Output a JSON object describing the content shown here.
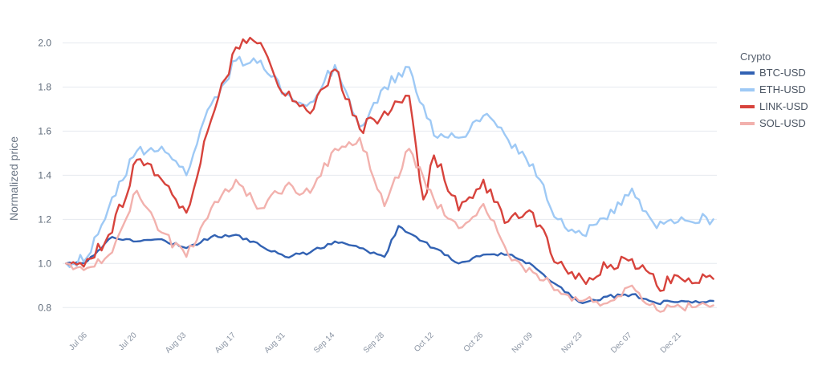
{
  "chart_data": {
    "type": "line",
    "ylabel": "Normalized price",
    "ylim": [
      0.75,
      2.02
    ],
    "yticks": [
      0.8,
      1.0,
      1.2,
      1.4,
      1.6,
      1.8,
      2.0
    ],
    "ytick_labels": [
      "0.8",
      "1.0",
      "1.2",
      "1.4",
      "1.6",
      "1.8",
      "2.0"
    ],
    "xlim": [
      "2023-06-29",
      "2023-12-31"
    ],
    "xticks": [
      "2023-07-06",
      "2023-07-20",
      "2023-08-03",
      "2023-08-17",
      "2023-08-31",
      "2023-09-14",
      "2023-09-28",
      "2023-10-12",
      "2023-10-26",
      "2023-11-09",
      "2023-11-23",
      "2023-12-07",
      "2023-12-21"
    ],
    "xtick_labels": [
      "Jul 06",
      "Jul 20",
      "Aug 03",
      "Aug 17",
      "Aug 31",
      "Sep 14",
      "Sep 28",
      "Oct 12",
      "Oct 26",
      "Nov 09",
      "Nov 23",
      "Dec 07",
      "Dec 21"
    ],
    "grid": true,
    "legend_title": "Crypto",
    "legend_position": "right",
    "series": [
      {
        "name": "BTC-USD",
        "color": "#3262b3",
        "x": [
          "2023-06-30",
          "2023-07-06",
          "2023-07-13",
          "2023-07-20",
          "2023-07-27",
          "2023-08-03",
          "2023-08-10",
          "2023-08-17",
          "2023-08-24",
          "2023-08-31",
          "2023-09-07",
          "2023-09-14",
          "2023-09-21",
          "2023-09-28",
          "2023-10-02",
          "2023-10-12",
          "2023-10-19",
          "2023-10-26",
          "2023-11-02",
          "2023-11-09",
          "2023-11-16",
          "2023-11-23",
          "2023-11-30",
          "2023-12-07",
          "2023-12-14",
          "2023-12-21",
          "2023-12-30"
        ],
        "values": [
          1.0,
          1.01,
          1.12,
          1.1,
          1.11,
          1.07,
          1.12,
          1.13,
          1.08,
          1.03,
          1.05,
          1.1,
          1.07,
          1.03,
          1.17,
          1.07,
          1.0,
          1.04,
          1.04,
          0.99,
          0.9,
          0.82,
          0.85,
          0.86,
          0.82,
          0.83,
          0.83
        ]
      },
      {
        "name": "ETH-USD",
        "color": "#9ec9f5",
        "x": [
          "2023-06-30",
          "2023-07-06",
          "2023-07-13",
          "2023-07-20",
          "2023-07-27",
          "2023-08-03",
          "2023-08-10",
          "2023-08-17",
          "2023-08-24",
          "2023-08-31",
          "2023-09-07",
          "2023-09-14",
          "2023-09-21",
          "2023-09-28",
          "2023-10-05",
          "2023-10-12",
          "2023-10-19",
          "2023-10-26",
          "2023-11-02",
          "2023-11-09",
          "2023-11-16",
          "2023-11-23",
          "2023-11-30",
          "2023-12-07",
          "2023-12-14",
          "2023-12-21",
          "2023-12-30"
        ],
        "values": [
          1.0,
          1.03,
          1.3,
          1.51,
          1.53,
          1.4,
          1.72,
          1.92,
          1.92,
          1.77,
          1.73,
          1.9,
          1.62,
          1.8,
          1.89,
          1.58,
          1.57,
          1.67,
          1.56,
          1.45,
          1.2,
          1.13,
          1.2,
          1.34,
          1.16,
          1.21,
          1.2
        ]
      },
      {
        "name": "LINK-USD",
        "color": "#d7433c",
        "x": [
          "2023-06-30",
          "2023-07-06",
          "2023-07-13",
          "2023-07-20",
          "2023-07-27",
          "2023-08-03",
          "2023-08-10",
          "2023-08-17",
          "2023-08-24",
          "2023-08-31",
          "2023-09-07",
          "2023-09-14",
          "2023-09-21",
          "2023-09-28",
          "2023-10-05",
          "2023-10-09",
          "2023-10-12",
          "2023-10-19",
          "2023-10-26",
          "2023-11-02",
          "2023-11-09",
          "2023-11-16",
          "2023-11-23",
          "2023-11-30",
          "2023-12-07",
          "2023-12-14",
          "2023-12-21",
          "2023-12-30"
        ],
        "values": [
          1.0,
          1.02,
          1.14,
          1.47,
          1.38,
          1.23,
          1.65,
          1.98,
          2.0,
          1.76,
          1.68,
          1.88,
          1.61,
          1.69,
          1.76,
          1.29,
          1.49,
          1.24,
          1.38,
          1.19,
          1.23,
          1.0,
          0.93,
          0.98,
          1.02,
          0.9,
          0.93,
          0.93
        ]
      },
      {
        "name": "SOL-USD",
        "color": "#f2b1ad",
        "x": [
          "2023-06-30",
          "2023-07-06",
          "2023-07-13",
          "2023-07-20",
          "2023-07-27",
          "2023-08-03",
          "2023-08-10",
          "2023-08-17",
          "2023-08-24",
          "2023-08-31",
          "2023-09-07",
          "2023-09-14",
          "2023-09-21",
          "2023-09-28",
          "2023-10-05",
          "2023-10-12",
          "2023-10-19",
          "2023-10-26",
          "2023-11-02",
          "2023-11-09",
          "2023-11-16",
          "2023-11-23",
          "2023-11-30",
          "2023-12-07",
          "2023-12-14",
          "2023-12-21",
          "2023-12-30"
        ],
        "values": [
          1.0,
          0.98,
          1.05,
          1.33,
          1.14,
          1.03,
          1.25,
          1.38,
          1.25,
          1.35,
          1.32,
          1.52,
          1.57,
          1.26,
          1.52,
          1.29,
          1.16,
          1.27,
          1.04,
          0.96,
          0.88,
          0.83,
          0.82,
          0.9,
          0.79,
          0.8,
          0.81
        ]
      }
    ]
  }
}
